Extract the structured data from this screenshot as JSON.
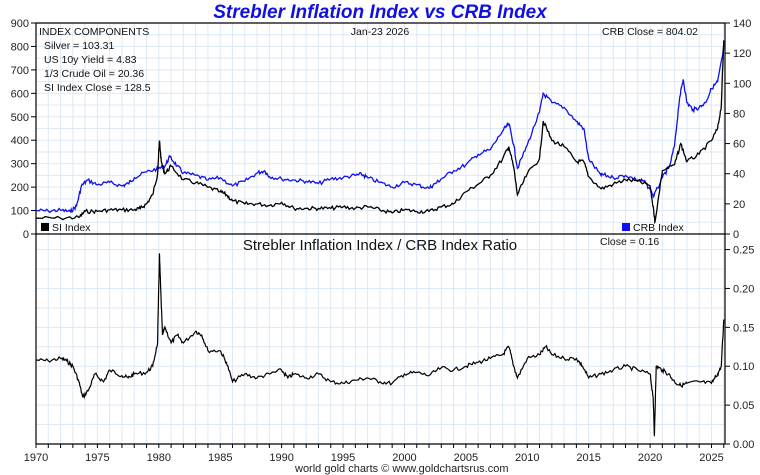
{
  "header": {
    "title": "Strebler Inflation Index vs CRB Index",
    "date": "Jan-23  2026",
    "footer": "world gold charts © www.goldchartsrus.com"
  },
  "top_panel": {
    "components_heading": "INDEX COMPONENTS",
    "components": [
      "Silver = 103.31",
      "US 10y Yield = 4.83",
      "1/3 Crude Oil = 20.36",
      "SI Index Close = 128.5"
    ],
    "crb_close": "CRB Close = 804.02",
    "legend": [
      {
        "label": "SI Index",
        "color": "#000000"
      },
      {
        "label": "CRB Index",
        "color": "#1010ee"
      }
    ]
  },
  "bottom_panel": {
    "title": "Strebler Inflation Index / CRB Index Ratio",
    "close": "Close = 0.16"
  },
  "colors": {
    "si": "#000000",
    "crb": "#1010ee",
    "grid": "#dde9f5",
    "title": "#1010e0"
  },
  "chart_data": [
    {
      "type": "line",
      "title": "Strebler Inflation Index vs CRB Index",
      "x_ticks": [
        "1970",
        "1975",
        "1980",
        "1985",
        "1990",
        "1995",
        "2000",
        "2005",
        "2010",
        "2015",
        "2020",
        "2025"
      ],
      "xlim": [
        1970,
        2026.1
      ],
      "left_axis": {
        "label": "CRB Index",
        "ylim": [
          0,
          900
        ],
        "ticks": [
          "0",
          "100",
          "200",
          "300",
          "400",
          "500",
          "600",
          "700",
          "800",
          "900"
        ]
      },
      "right_axis": {
        "label": "SI Index",
        "ylim": [
          0,
          140
        ],
        "ticks": [
          "0",
          "20",
          "40",
          "60",
          "80",
          "100",
          "120",
          "140"
        ]
      },
      "grid": true,
      "legend": "bottom",
      "series": [
        {
          "name": "CRB Index",
          "axis": "left",
          "x": [
            1970,
            1971,
            1972,
            1972.8,
            1973.3,
            1973.7,
            1974.2,
            1975,
            1976,
            1977,
            1977.5,
            1978,
            1979,
            1980,
            1980.5,
            1980.9,
            1981.5,
            1982,
            1983,
            1984,
            1985,
            1986,
            1987,
            1988,
            1988.6,
            1989,
            1990,
            1991,
            1992,
            1993,
            1994,
            1995,
            1996,
            1996.5,
            1997,
            1998,
            1999,
            2000,
            2001,
            2002,
            2002.5,
            2003,
            2004,
            2005,
            2006,
            2007,
            2008,
            2008.5,
            2008.9,
            2009.2,
            2010,
            2011,
            2011.3,
            2012,
            2013,
            2014,
            2014.6,
            2015,
            2016,
            2016.1,
            2017,
            2018,
            2019,
            2019.5,
            2020,
            2020.3,
            2021,
            2021.6,
            2022,
            2022.4,
            2022.7,
            2023,
            2023.5,
            2024,
            2024.5,
            2025,
            2025.5,
            2025.9,
            2026
          ],
          "y": [
            100,
            98,
            102,
            95,
            120,
            205,
            230,
            210,
            220,
            205,
            215,
            240,
            265,
            280,
            290,
            330,
            290,
            260,
            250,
            230,
            240,
            205,
            225,
            260,
            270,
            245,
            235,
            230,
            225,
            215,
            235,
            240,
            250,
            255,
            240,
            220,
            200,
            220,
            210,
            195,
            215,
            235,
            270,
            295,
            340,
            360,
            440,
            470,
            380,
            280,
            380,
            520,
            600,
            560,
            540,
            480,
            450,
            320,
            250,
            255,
            240,
            250,
            230,
            225,
            190,
            160,
            240,
            290,
            380,
            580,
            660,
            560,
            530,
            540,
            560,
            620,
            650,
            760,
            804
          ]
        },
        {
          "name": "SI Index",
          "axis": "right",
          "x": [
            1970,
            1972,
            1973.5,
            1974,
            1975,
            1976,
            1977,
            1978,
            1978.5,
            1979,
            1979.5,
            1979.9,
            1980.05,
            1980.2,
            1980.5,
            1981,
            1982,
            1983,
            1984,
            1985,
            1985.5,
            1986,
            1987,
            1988,
            1989,
            1990,
            1991,
            1992,
            1993,
            1994,
            1995,
            1996,
            1997,
            1998,
            1999,
            2000,
            2001,
            2002,
            2003,
            2004,
            2005,
            2006,
            2007,
            2008,
            2008.5,
            2008.9,
            2009.2,
            2010,
            2011,
            2011.3,
            2012,
            2013,
            2014,
            2014.6,
            2015,
            2016,
            2017,
            2018,
            2019,
            2020,
            2020.3,
            2020.4,
            2021,
            2022,
            2022.5,
            2023,
            2024,
            2025,
            2025.5,
            2025.8,
            2026
          ],
          "y": [
            10.5,
            10.5,
            11,
            15,
            15,
            16,
            16,
            16,
            17,
            20,
            26,
            40,
            62,
            48,
            40,
            45,
            36,
            34,
            31,
            28,
            26,
            22,
            20,
            20,
            19,
            21,
            17,
            17,
            17,
            17,
            18,
            17,
            18,
            16,
            14,
            16,
            15,
            15,
            18,
            20,
            28,
            33,
            39,
            50,
            58,
            44,
            26,
            40,
            50,
            75,
            62,
            58,
            48,
            48,
            38,
            30,
            33,
            36,
            35,
            32,
            15,
            8,
            42,
            46,
            60,
            48,
            53,
            62,
            70,
            85,
            128.5
          ]
        }
      ]
    },
    {
      "type": "line",
      "title": "Strebler Inflation Index / CRB Index Ratio",
      "x_ticks": [
        "1970",
        "1975",
        "1980",
        "1985",
        "1990",
        "1995",
        "2000",
        "2005",
        "2010",
        "2015",
        "2020",
        "2025"
      ],
      "xlim": [
        1970,
        2026.1
      ],
      "ylim": [
        0,
        0.27
      ],
      "y_ticks": [
        "0.00",
        "0.05",
        "0.10",
        "0.15",
        "0.20",
        "0.25"
      ],
      "grid": true,
      "series": [
        {
          "name": "SI / CRB Ratio",
          "x": [
            1970,
            1971,
            1972,
            1972.5,
            1973,
            1973.5,
            1973.8,
            1974.3,
            1974.8,
            1975.5,
            1976,
            1977,
            1977.5,
            1978,
            1979,
            1979.5,
            1979.9,
            1980.05,
            1980.15,
            1980.3,
            1980.5,
            1981,
            1981.5,
            1982,
            1983,
            1983.5,
            1984,
            1985,
            1985.5,
            1986,
            1987,
            1988,
            1989,
            1990,
            1990.5,
            1991,
            1992,
            1993,
            1994,
            1995,
            1996,
            1997,
            1998,
            1999,
            2000,
            2001,
            2002,
            2003,
            2004,
            2005,
            2006,
            2007,
            2008,
            2008.5,
            2008.9,
            2009.2,
            2010,
            2011,
            2011.5,
            2012,
            2013,
            2014,
            2014.5,
            2015,
            2016,
            2017,
            2018,
            2019,
            2020,
            2020.25,
            2020.35,
            2020.5,
            2021,
            2021.5,
            2022,
            2022.5,
            2023,
            2024,
            2025,
            2025.5,
            2025.8,
            2026
          ],
          "y": [
            0.108,
            0.107,
            0.11,
            0.107,
            0.1,
            0.08,
            0.06,
            0.07,
            0.09,
            0.08,
            0.095,
            0.088,
            0.085,
            0.09,
            0.092,
            0.1,
            0.13,
            0.245,
            0.2,
            0.14,
            0.15,
            0.13,
            0.14,
            0.13,
            0.145,
            0.14,
            0.12,
            0.12,
            0.105,
            0.08,
            0.09,
            0.085,
            0.09,
            0.095,
            0.085,
            0.09,
            0.085,
            0.09,
            0.08,
            0.078,
            0.082,
            0.085,
            0.08,
            0.078,
            0.09,
            0.092,
            0.088,
            0.098,
            0.095,
            0.1,
            0.105,
            0.11,
            0.115,
            0.125,
            0.1,
            0.085,
            0.11,
            0.115,
            0.125,
            0.115,
            0.11,
            0.11,
            0.1,
            0.085,
            0.09,
            0.095,
            0.1,
            0.095,
            0.09,
            0.06,
            0.01,
            0.1,
            0.095,
            0.09,
            0.08,
            0.075,
            0.078,
            0.08,
            0.078,
            0.09,
            0.1,
            0.16
          ]
        }
      ]
    }
  ]
}
